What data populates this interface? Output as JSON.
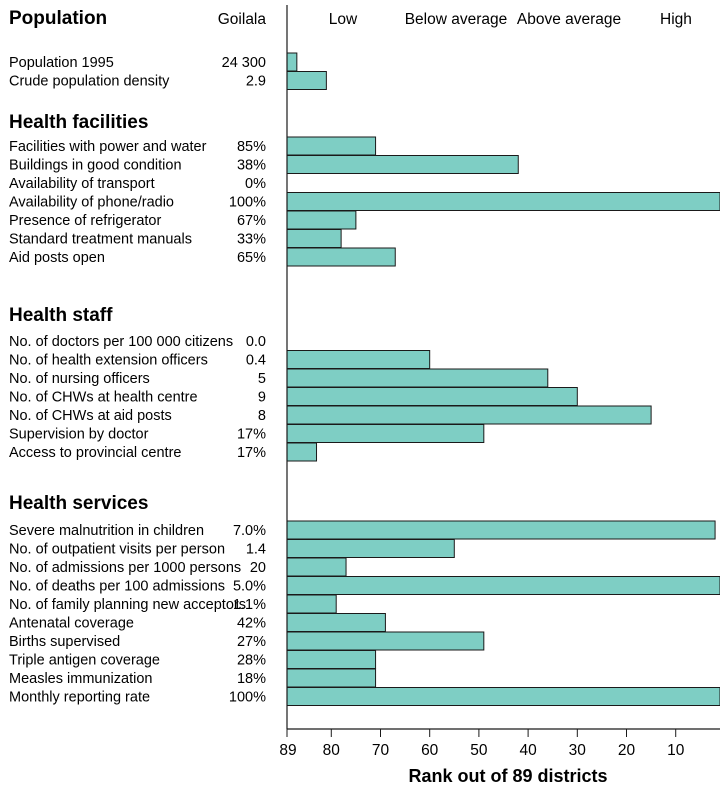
{
  "chart_data": {
    "type": "bar",
    "orientation": "horizontal",
    "district": "Goilala",
    "column_headers": [
      "Low",
      "Below average",
      "Above average",
      "High"
    ],
    "xlabel": "Rank out of 89 districts",
    "xlim": [
      89,
      1
    ],
    "x_ticks": [
      "89",
      "80",
      "70",
      "60",
      "50",
      "40",
      "30",
      "20",
      "10"
    ],
    "x_tick_values": [
      89,
      80,
      70,
      60,
      50,
      40,
      30,
      20,
      10
    ],
    "bar_color": "#7ecec4",
    "bar_edge_color": "#1a1a1a",
    "sections": [
      {
        "title": "Population",
        "rows": [
          {
            "label": "Population 1995",
            "value": "24 300",
            "rank": 87
          },
          {
            "label": "Crude population density",
            "value": "2.9",
            "rank": 81
          }
        ]
      },
      {
        "title": "Health facilities",
        "rows": [
          {
            "label": "Facilities with power and water",
            "value": "85%",
            "rank": 71
          },
          {
            "label": "Buildings in good condition",
            "value": "38%",
            "rank": 42
          },
          {
            "label": "Availability of transport",
            "value": "0%",
            "rank": null
          },
          {
            "label": "Availability of phone/radio",
            "value": "100%",
            "rank": 1
          },
          {
            "label": "Presence of refrigerator",
            "value": "67%",
            "rank": 75
          },
          {
            "label": "Standard treatment manuals",
            "value": "33%",
            "rank": 78
          },
          {
            "label": "Aid posts open",
            "value": "65%",
            "rank": 67
          }
        ]
      },
      {
        "title": "Health staff",
        "rows": [
          {
            "label": "No. of doctors per 100 000 citizens",
            "value": "0.0",
            "rank": null
          },
          {
            "label": "No. of health extension officers",
            "value": "0.4",
            "rank": 60
          },
          {
            "label": "No. of nursing officers",
            "value": "5",
            "rank": 36
          },
          {
            "label": "No. of CHWs  at health centre",
            "value": "9",
            "rank": 30
          },
          {
            "label": "No. of CHWs  at aid posts",
            "value": "8",
            "rank": 15
          },
          {
            "label": "Supervision by doctor",
            "value": "17%",
            "rank": 49
          },
          {
            "label": "Access to provincial centre",
            "value": "17%",
            "rank": 83
          }
        ]
      },
      {
        "title": "Health services",
        "rows": [
          {
            "label": "Severe malnutrition in children",
            "value": "7.0%",
            "rank": 2
          },
          {
            "label": "No. of outpatient visits per person",
            "value": "1.4",
            "rank": 55
          },
          {
            "label": "No. of admissions per 1000 persons",
            "value": "20",
            "rank": 77
          },
          {
            "label": "No. of deaths per 100 admissions",
            "value": "5.0%",
            "rank": 1
          },
          {
            "label": "No. of family planning new acceptors",
            "value": "1.1%",
            "rank": 79
          },
          {
            "label": "Antenatal coverage",
            "value": "42%",
            "rank": 69
          },
          {
            "label": "Births supervised",
            "value": "27%",
            "rank": 49
          },
          {
            "label": "Triple antigen coverage",
            "value": "28%",
            "rank": 71
          },
          {
            "label": "Measles immunization",
            "value": "18%",
            "rank": 71
          },
          {
            "label": "Monthly reporting rate",
            "value": "100%",
            "rank": 1
          }
        ]
      }
    ]
  }
}
